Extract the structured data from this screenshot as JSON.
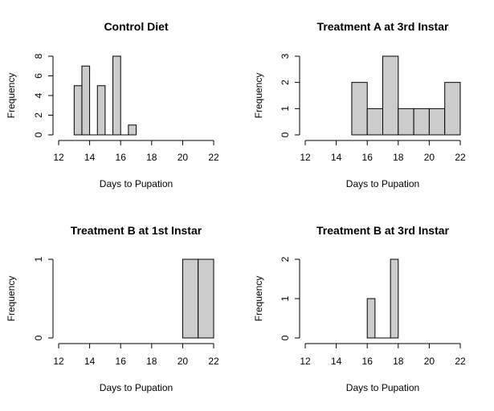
{
  "chart_data": [
    {
      "type": "bar",
      "subtype": "histogram",
      "title": "Control Diet",
      "xlabel": "Days to Pupation",
      "ylabel": "Frequency",
      "xlim": [
        12,
        22
      ],
      "ylim": [
        0,
        8
      ],
      "xticks": [
        12,
        14,
        16,
        18,
        20,
        22
      ],
      "yticks": [
        0,
        2,
        4,
        6,
        8
      ],
      "bin_edges": [
        13,
        13.5,
        14,
        14.5,
        15,
        15.5,
        16,
        16.5,
        17
      ],
      "values": [
        5,
        7,
        0,
        5,
        0,
        8,
        0,
        1
      ],
      "bar_color": "#cccccc"
    },
    {
      "type": "bar",
      "subtype": "histogram",
      "title": "Treatment A at 3rd Instar",
      "xlabel": "Days to Pupation",
      "ylabel": "Frequency",
      "xlim": [
        12,
        22
      ],
      "ylim": [
        0,
        3
      ],
      "xticks": [
        12,
        14,
        16,
        18,
        20,
        22
      ],
      "yticks": [
        0,
        1,
        2,
        3
      ],
      "bin_edges": [
        15,
        16,
        17,
        18,
        19,
        20,
        21,
        22
      ],
      "values": [
        2,
        1,
        3,
        1,
        1,
        1,
        2
      ],
      "bar_color": "#cccccc"
    },
    {
      "type": "bar",
      "subtype": "histogram",
      "title": "Treatment B at 1st Instar",
      "xlabel": "Days to Pupation",
      "ylabel": "Frequency",
      "xlim": [
        12,
        22
      ],
      "ylim": [
        0,
        1
      ],
      "xticks": [
        12,
        14,
        16,
        18,
        20,
        22
      ],
      "yticks": [
        0,
        1
      ],
      "bin_edges": [
        20,
        21,
        22
      ],
      "values": [
        1,
        1
      ],
      "bar_color": "#cccccc"
    },
    {
      "type": "bar",
      "subtype": "histogram",
      "title": "Treatment B at 3rd Instar",
      "xlabel": "Days to Pupation",
      "ylabel": "Frequency",
      "xlim": [
        12,
        22
      ],
      "ylim": [
        0,
        2
      ],
      "xticks": [
        12,
        14,
        16,
        18,
        20,
        22
      ],
      "yticks": [
        0,
        1,
        2
      ],
      "bin_edges": [
        16,
        16.5,
        17,
        17.5,
        18
      ],
      "values": [
        1,
        0,
        0,
        2
      ],
      "bar_color": "#cccccc"
    }
  ]
}
